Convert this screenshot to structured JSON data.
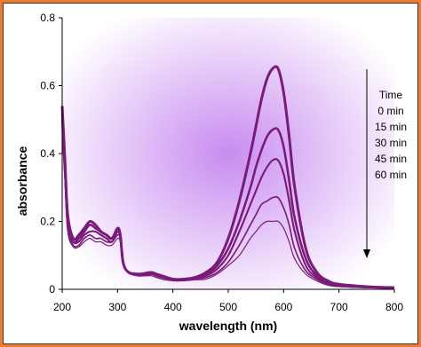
{
  "chart_data": {
    "type": "line",
    "xlabel": "wavelength (nm)",
    "ylabel": "absorbance",
    "xlim": [
      200,
      800
    ],
    "ylim": [
      0,
      0.8
    ],
    "x_ticks": [
      200,
      300,
      400,
      500,
      600,
      700,
      800
    ],
    "y_ticks": [
      0,
      0.2,
      0.4,
      0.6,
      0.8
    ],
    "x_tick_labels": [
      "200",
      "300",
      "400",
      "500",
      "600",
      "700",
      "800"
    ],
    "y_tick_labels": [
      "0",
      "0.2",
      "0.4",
      "0.6",
      "0.8"
    ],
    "grid": false,
    "legend": {
      "placement": "top-right",
      "title": "Time",
      "entries": [
        "0 min",
        "15 min",
        "30 min",
        "45 min",
        "60 min"
      ],
      "arrow": "down"
    },
    "line_color": "#7a1a7a",
    "background_glow": "#c88cf0",
    "x": [
      200,
      205,
      210,
      220,
      230,
      240,
      250,
      260,
      270,
      280,
      290,
      300,
      305,
      310,
      320,
      340,
      360,
      370,
      380,
      400,
      420,
      440,
      460,
      480,
      500,
      520,
      540,
      550,
      560,
      570,
      580,
      590,
      600,
      610,
      620,
      640,
      660,
      680,
      700,
      750,
      800
    ],
    "series": [
      {
        "values": [
          0.54,
          0.38,
          0.22,
          0.15,
          0.16,
          0.18,
          0.2,
          0.19,
          0.17,
          0.16,
          0.15,
          0.18,
          0.16,
          0.08,
          0.05,
          0.045,
          0.05,
          0.045,
          0.04,
          0.03,
          0.03,
          0.035,
          0.05,
          0.08,
          0.15,
          0.26,
          0.4,
          0.48,
          0.56,
          0.62,
          0.65,
          0.65,
          0.58,
          0.45,
          0.3,
          0.12,
          0.05,
          0.025,
          0.015,
          0.008,
          0.005
        ]
      },
      {
        "values": [
          0.52,
          0.36,
          0.2,
          0.14,
          0.15,
          0.17,
          0.19,
          0.18,
          0.17,
          0.16,
          0.15,
          0.17,
          0.16,
          0.08,
          0.05,
          0.045,
          0.05,
          0.045,
          0.04,
          0.03,
          0.03,
          0.035,
          0.045,
          0.07,
          0.12,
          0.2,
          0.3,
          0.36,
          0.41,
          0.45,
          0.47,
          0.47,
          0.42,
          0.32,
          0.21,
          0.09,
          0.04,
          0.02,
          0.012,
          0.007,
          0.005
        ]
      },
      {
        "values": [
          0.5,
          0.35,
          0.19,
          0.14,
          0.14,
          0.16,
          0.17,
          0.17,
          0.16,
          0.15,
          0.14,
          0.17,
          0.15,
          0.08,
          0.05,
          0.04,
          0.045,
          0.04,
          0.035,
          0.03,
          0.03,
          0.033,
          0.04,
          0.06,
          0.1,
          0.17,
          0.25,
          0.29,
          0.33,
          0.36,
          0.38,
          0.38,
          0.34,
          0.26,
          0.17,
          0.07,
          0.035,
          0.018,
          0.01,
          0.006,
          0.004
        ]
      },
      {
        "values": [
          0.48,
          0.33,
          0.18,
          0.13,
          0.13,
          0.15,
          0.16,
          0.15,
          0.15,
          0.14,
          0.14,
          0.16,
          0.15,
          0.08,
          0.05,
          0.04,
          0.045,
          0.04,
          0.035,
          0.028,
          0.028,
          0.03,
          0.035,
          0.05,
          0.08,
          0.13,
          0.19,
          0.22,
          0.25,
          0.26,
          0.27,
          0.27,
          0.24,
          0.19,
          0.12,
          0.055,
          0.03,
          0.015,
          0.009,
          0.005,
          0.004
        ]
      },
      {
        "values": [
          0.46,
          0.32,
          0.17,
          0.125,
          0.125,
          0.14,
          0.15,
          0.14,
          0.14,
          0.13,
          0.13,
          0.15,
          0.14,
          0.08,
          0.05,
          0.04,
          0.04,
          0.035,
          0.03,
          0.025,
          0.025,
          0.028,
          0.03,
          0.045,
          0.07,
          0.1,
          0.15,
          0.17,
          0.19,
          0.2,
          0.2,
          0.2,
          0.18,
          0.14,
          0.09,
          0.045,
          0.025,
          0.012,
          0.008,
          0.005,
          0.003
        ]
      }
    ]
  }
}
